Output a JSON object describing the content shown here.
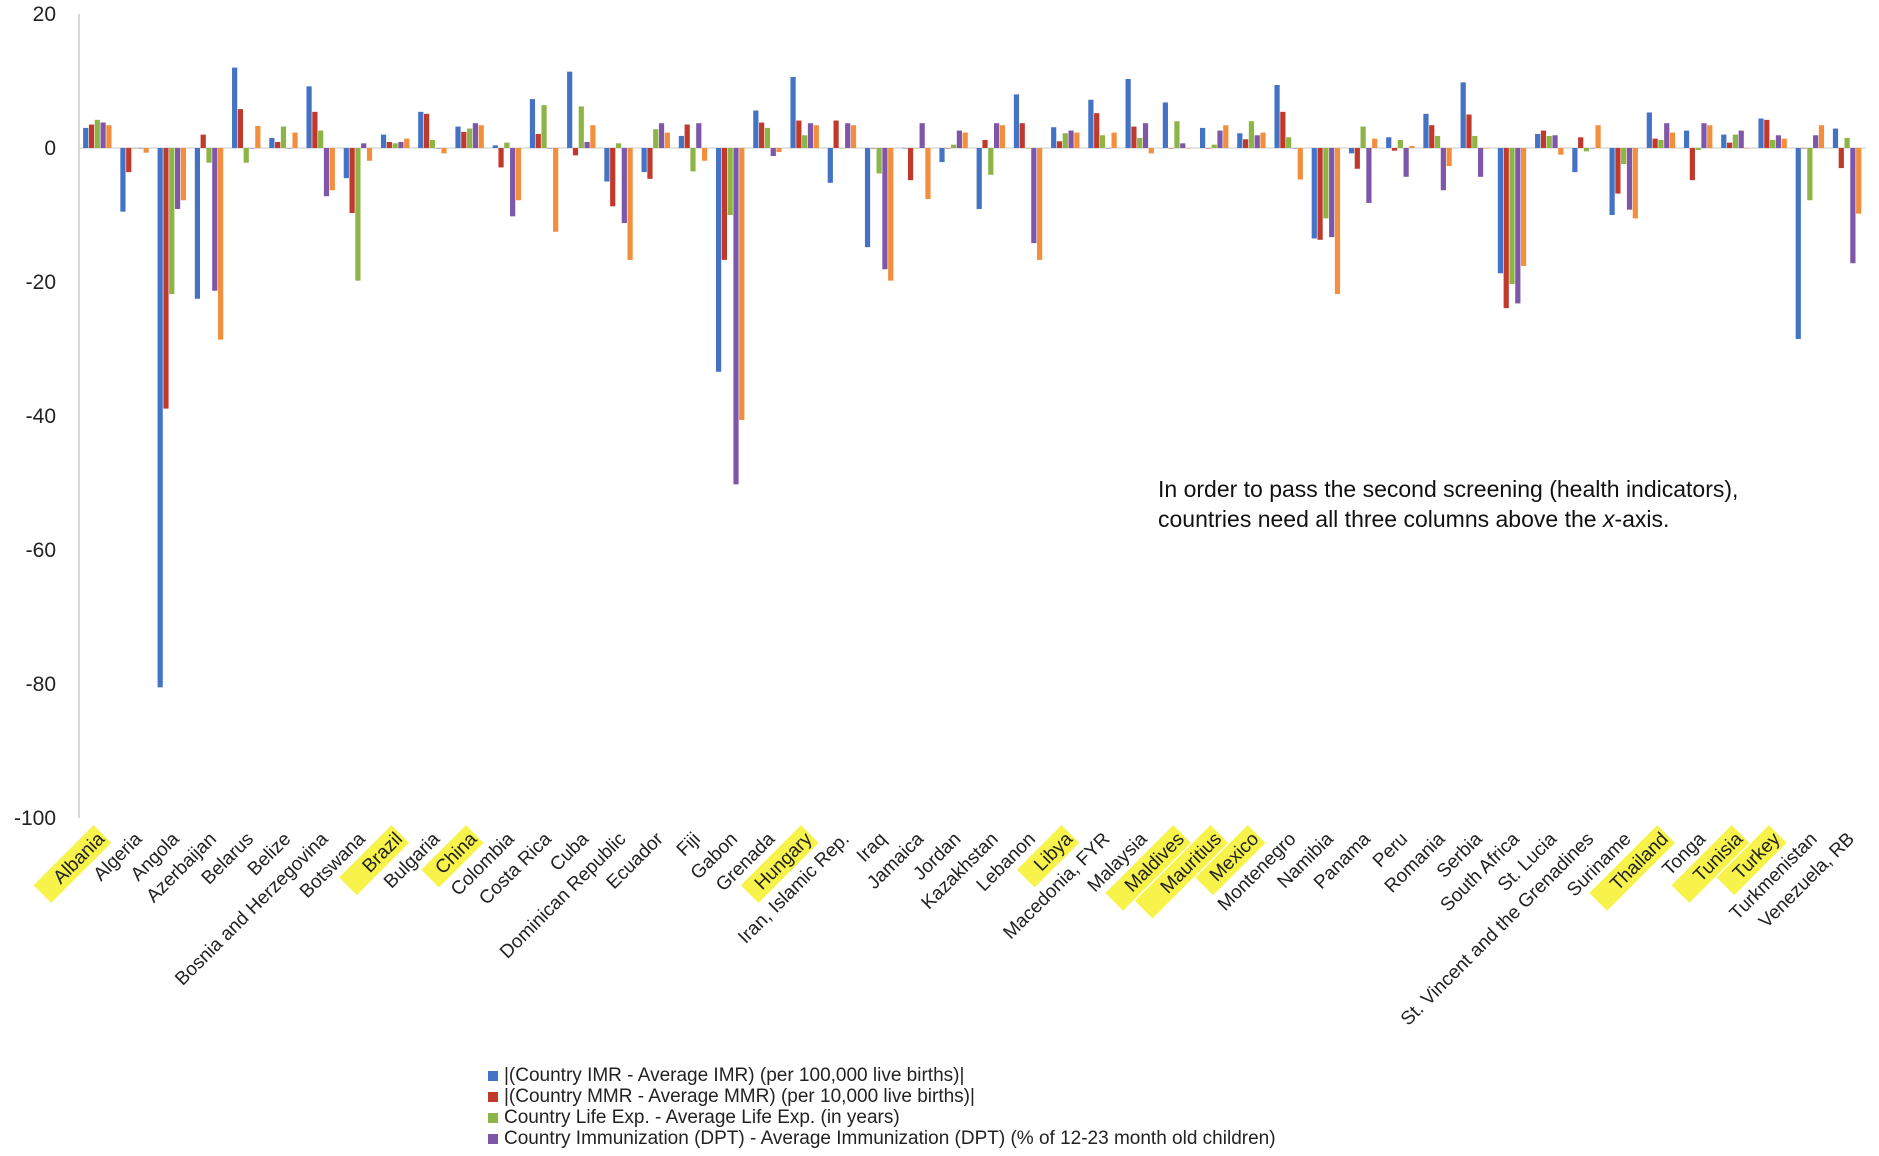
{
  "chart_data": {
    "type": "bar",
    "ylim": [
      -100,
      20
    ],
    "yticks": [
      20,
      0,
      -20,
      -40,
      -60,
      -80,
      -100
    ],
    "categories": [
      "Albania",
      "Algeria",
      "Angola",
      "Azerbaijan",
      "Belarus",
      "Belize",
      "Bosnia and Herzegovina",
      "Botswana",
      "Brazil",
      "Bulgaria",
      "China",
      "Colombia",
      "Costa Rica",
      "Cuba",
      "Dominican Republic",
      "Ecuador",
      "Fiji",
      "Gabon",
      "Grenada",
      "Hungary",
      "Iran, Islamic Rep.",
      "Iraq",
      "Jamaica",
      "Jordan",
      "Kazakhstan",
      "Lebanon",
      "Libya",
      "Macedonia, FYR",
      "Malaysia",
      "Maldives",
      "Mauritius",
      "Mexico",
      "Montenegro",
      "Namibia",
      "Panama",
      "Peru",
      "Romania",
      "Serbia",
      "South Africa",
      "St. Lucia",
      "St. Vincent and the Grenadines",
      "Suriname",
      "Thailand",
      "Tonga",
      "Tunisia",
      "Turkey",
      "Turkmenistan",
      "Venezuela, RB"
    ],
    "highlighted": [
      "Albania",
      "Brazil",
      "China",
      "Hungary",
      "Libya",
      "Maldives",
      "Mauritius",
      "Mexico",
      "Thailand",
      "Tunisia",
      "Turkey"
    ],
    "highlight_color": "#f7f34a",
    "series": [
      {
        "name": "|(Country IMR - Average IMR) (per 100,000 live births)|",
        "color": "#4472c4",
        "values": [
          3,
          -9.5,
          -80.5,
          -22.5,
          12,
          1.5,
          9.2,
          -4.5,
          2,
          5.4,
          3.2,
          0.4,
          7.3,
          11.4,
          -5,
          -3.6,
          1.8,
          -33.4,
          5.6,
          10.6,
          -5.2,
          -14.8,
          0,
          -2.1,
          -9.1,
          8,
          3.1,
          7.2,
          10.3,
          6.8,
          3,
          2.2,
          9.4,
          -13.5,
          -0.8,
          1.6,
          5.1,
          9.8,
          -18.7,
          2.1,
          -3.6,
          -10,
          5.3,
          2.6,
          2,
          4.4,
          -28.5,
          2.9
        ]
      },
      {
        "name": "|(Country MMR - Average MMR) (per 10,000 live births)|",
        "color": "#c0392b",
        "values": [
          3.5,
          -3.6,
          -38.9,
          2,
          5.8,
          0.9,
          5.4,
          -9.7,
          0.9,
          5.1,
          2.4,
          -2.9,
          2.1,
          -1.1,
          -8.7,
          -4.6,
          3.5,
          -16.7,
          3.8,
          4.1,
          4.1,
          0,
          -4.8,
          0,
          1.2,
          3.7,
          1,
          5.2,
          3.2,
          0,
          0,
          1.3,
          5.4,
          -13.7,
          -3.1,
          -0.4,
          3.4,
          5,
          -23.9,
          2.6,
          1.6,
          -6.8,
          1.4,
          -4.8,
          0.8,
          4.2,
          0,
          -3
        ]
      },
      {
        "name": "Country Life Exp. - Average Life Exp. (in years)",
        "color": "#8cb545",
        "values": [
          4.2,
          0,
          -21.8,
          -2.2,
          -2.2,
          3.2,
          2.6,
          -19.8,
          0.7,
          1.2,
          2.9,
          0.8,
          6.4,
          6.2,
          0.7,
          2.8,
          -3.5,
          -10,
          3,
          1.9,
          0,
          -3.8,
          0,
          0.5,
          -4,
          0,
          2.2,
          1.9,
          1.5,
          4,
          0.5,
          4,
          1.6,
          -10.5,
          3.2,
          1.2,
          1.8,
          1.8,
          -20.3,
          1.8,
          -0.5,
          -2.4,
          1.2,
          -0.3,
          2,
          1.2,
          -7.8,
          1.5
        ]
      },
      {
        "name": "Country Immunization (DPT) - Average Immunization (DPT) (% of 12-23 month old children)",
        "color": "#7e57a8",
        "values": [
          3.8,
          0,
          -9.1,
          -21.3,
          0,
          0,
          -7.2,
          0.7,
          0.9,
          0,
          3.7,
          -10.2,
          0,
          0.9,
          -11.2,
          3.7,
          3.7,
          -50.2,
          -1.2,
          3.7,
          3.7,
          -18.1,
          3.7,
          2.6,
          3.7,
          -14.2,
          2.6,
          0,
          3.7,
          0.7,
          2.6,
          1.9,
          0,
          -13.3,
          -8.2,
          -4.3,
          -6.3,
          -4.3,
          -23.2,
          1.9,
          0,
          -9.2,
          3.7,
          3.7,
          2.6,
          1.9,
          1.9,
          -17.2
        ]
      },
      {
        "name": "",
        "color": "#f28e3c",
        "values": [
          3.4,
          -0.7,
          -7.8,
          -28.6,
          3.3,
          2.3,
          -6.3,
          -1.9,
          1.4,
          -0.8,
          3.4,
          -7.8,
          -12.5,
          3.4,
          -16.7,
          2.3,
          -1.9,
          -40.6,
          -0.6,
          3.4,
          3.4,
          -19.8,
          -7.6,
          2.3,
          3.4,
          -16.7,
          2.3,
          2.3,
          -0.8,
          0,
          3.4,
          2.3,
          -4.7,
          -21.8,
          1.4,
          0.3,
          -2.7,
          0,
          -17.6,
          -1,
          3.4,
          -10.5,
          2.3,
          3.4,
          0,
          1.4,
          3.4,
          -9.8
        ]
      }
    ],
    "annotation": [
      "In order to pass the second screening (health indicators),",
      [
        "countries need all three columns above the ",
        "x",
        "-axis."
      ]
    ],
    "legend_placement": "bottom",
    "legend_entries": [
      "|(Country IMR - Average IMR) (per 100,000 live births)|",
      "|(Country MMR - Average MMR) (per 10,000 live births)|",
      "Country Life Exp. - Average Life Exp. (in years)",
      "Country Immunization (DPT) - Average Immunization (DPT) (% of 12-23 month old children)"
    ],
    "grid": false,
    "title": "",
    "xlabel": "",
    "ylabel": ""
  }
}
